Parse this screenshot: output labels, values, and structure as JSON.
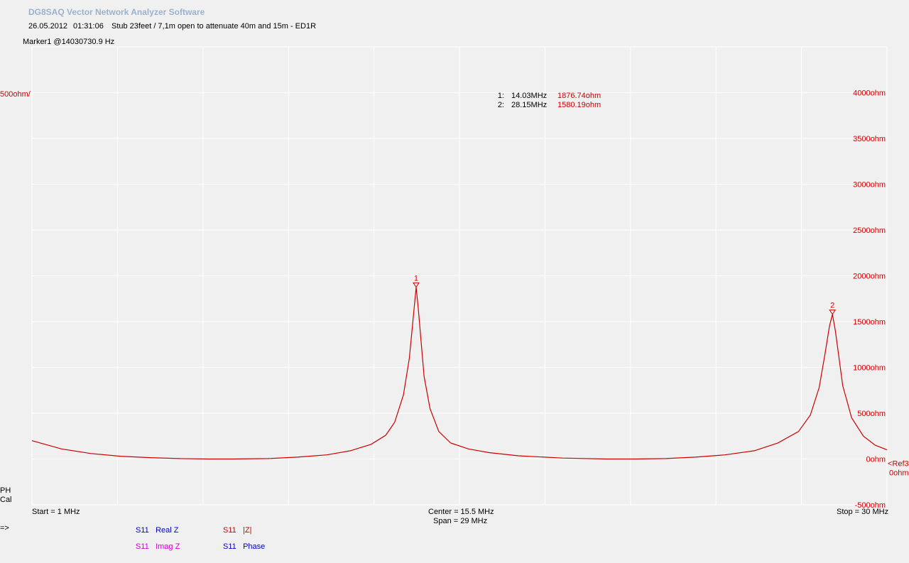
{
  "app": {
    "title": "DG8SAQ Vector Network Analyzer Software"
  },
  "subtitle": {
    "date": "26.05.2012",
    "time": "01:31:06",
    "description": "Stub 23feet / 7,1m open to attenuate 40m and 15m - ED1R"
  },
  "marker_info": "Marker1 @14030730.9 Hz",
  "left_scale": "500ohm/",
  "ref_label": {
    "line1": "<Ref3",
    "line2": "0ohm"
  },
  "markers_table": [
    {
      "idx": "1:",
      "freq": "14.03MHz",
      "value": "1876.74ohm"
    },
    {
      "idx": "2:",
      "freq": "28.15MHz",
      "value": "1580.19ohm"
    }
  ],
  "axis": {
    "start": "Start = 1 MHz",
    "center": "Center = 15.5 MHz",
    "span": "Span = 29 MHz",
    "stop": "Stop = 30 MHz"
  },
  "status": {
    "ph": "PH",
    "cal": "Cal",
    "arrow": "=>"
  },
  "legend": [
    {
      "ch": "S11",
      "name": "Real Z",
      "color": "#0000cc"
    },
    {
      "ch": "S11",
      "name": "|Z|",
      "color": "#cc0000"
    },
    {
      "ch": "S11",
      "name": "Imag Z",
      "color": "#cc00cc"
    },
    {
      "ch": "S11",
      "name": "Phase",
      "color": "#0000cc"
    }
  ],
  "colors": {
    "trace": "#cc0000",
    "grid": "#ffffff",
    "title": "#9cb2cc"
  },
  "chart_data": {
    "type": "line",
    "xlim": [
      1,
      30
    ],
    "ylim": [
      -500,
      4500
    ],
    "x_unit": "MHz",
    "y_unit": "ohm",
    "y_tick_values": [
      -500,
      0,
      500,
      1000,
      1500,
      2000,
      2500,
      3000,
      3500,
      4000
    ],
    "y_tick_labels": [
      "-500ohm",
      "0ohm",
      "500ohm",
      "1000ohm",
      "1500ohm",
      "2000ohm",
      "2500ohm",
      "3000ohm",
      "3500ohm",
      "4000ohm"
    ],
    "series": [
      {
        "name": "S11 |Z|",
        "color": "#cc0000",
        "x": [
          1,
          2,
          3,
          4,
          5,
          6,
          7,
          7.8,
          9,
          10,
          11,
          11.8,
          12.5,
          13,
          13.3,
          13.6,
          13.8,
          13.95,
          14.03,
          14.1,
          14.3,
          14.5,
          14.8,
          15.2,
          15.8,
          16.5,
          17.5,
          19,
          20.5,
          21.5,
          22.5,
          23.5,
          24.5,
          25.5,
          26.3,
          27,
          27.4,
          27.7,
          27.9,
          28.05,
          28.15,
          28.25,
          28.5,
          28.8,
          29.2,
          29.6,
          30
        ],
        "y": [
          200,
          110,
          60,
          30,
          15,
          5,
          0,
          0,
          5,
          20,
          45,
          90,
          160,
          260,
          400,
          700,
          1100,
          1600,
          1876,
          1650,
          900,
          550,
          300,
          175,
          110,
          70,
          35,
          10,
          0,
          0,
          5,
          20,
          45,
          90,
          175,
          300,
          480,
          780,
          1150,
          1450,
          1580,
          1400,
          800,
          450,
          250,
          150,
          100
        ]
      }
    ],
    "markers": [
      {
        "label": "1",
        "x": 14.03,
        "y": 1876.74
      },
      {
        "label": "2",
        "x": 28.15,
        "y": 1580.19
      }
    ]
  }
}
